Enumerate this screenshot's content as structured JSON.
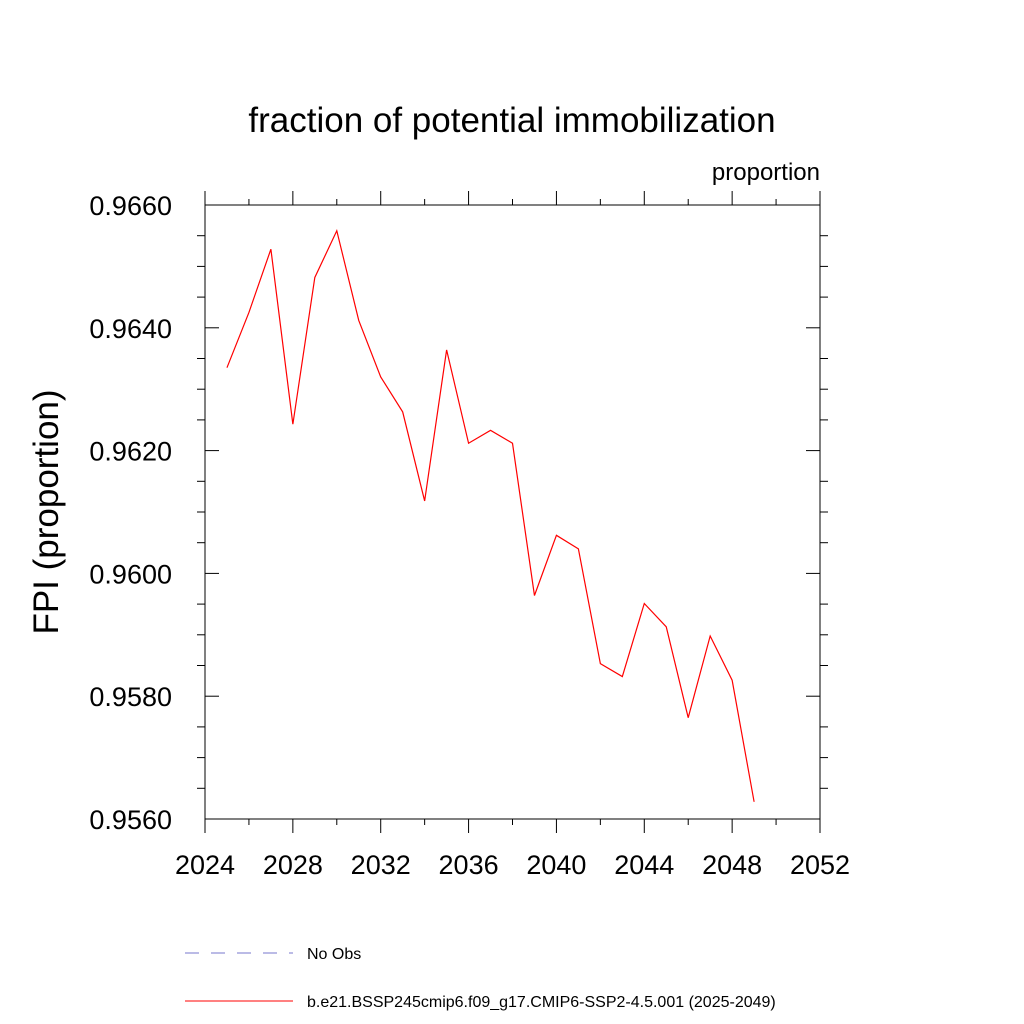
{
  "chart_data": {
    "type": "line",
    "title": "fraction of potential immobilization",
    "units_label": "proportion",
    "ylabel": "FPI  (proportion)",
    "xlabel": "",
    "xlim": [
      2024,
      2052
    ],
    "ylim": [
      0.956,
      0.966
    ],
    "x_ticks": [
      "2024",
      "2028",
      "2032",
      "2036",
      "2040",
      "2044",
      "2048",
      "2052"
    ],
    "y_ticks": [
      "0.9560",
      "0.9580",
      "0.9600",
      "0.9620",
      "0.9640",
      "0.9660"
    ],
    "x_tick_values": [
      2024,
      2028,
      2032,
      2036,
      2040,
      2044,
      2048,
      2052
    ],
    "y_tick_values": [
      0.956,
      0.958,
      0.96,
      0.962,
      0.964,
      0.966
    ],
    "grid": false,
    "legend_position": "bottom",
    "series": [
      {
        "name": "b.e21.BSSP245cmip6.f09_g17.CMIP6-SSP2-4.5.001 (2025-2049)",
        "color": "#ff0000",
        "style": "solid",
        "x": [
          2025,
          2026,
          2027,
          2028,
          2029,
          2030,
          2031,
          2032,
          2033,
          2034,
          2035,
          2036,
          2037,
          2038,
          2039,
          2040,
          2041,
          2042,
          2043,
          2044,
          2045,
          2046,
          2047,
          2048,
          2049
        ],
        "values": [
          0.96335,
          0.96425,
          0.96528,
          0.96243,
          0.96482,
          0.96558,
          0.96412,
          0.9632,
          0.96263,
          0.96118,
          0.96364,
          0.96212,
          0.96233,
          0.96212,
          0.95964,
          0.96062,
          0.9604,
          0.95853,
          0.95832,
          0.95951,
          0.95913,
          0.95765,
          0.95898,
          0.95826,
          0.95628
        ]
      }
    ],
    "legend": [
      {
        "label": "No Obs",
        "color": "#7777cc",
        "style": "dashed"
      },
      {
        "label": "b.e21.BSSP245cmip6.f09_g17.CMIP6-SSP2-4.5.001 (2025-2049)",
        "color": "#ff0000",
        "style": "solid"
      }
    ]
  }
}
